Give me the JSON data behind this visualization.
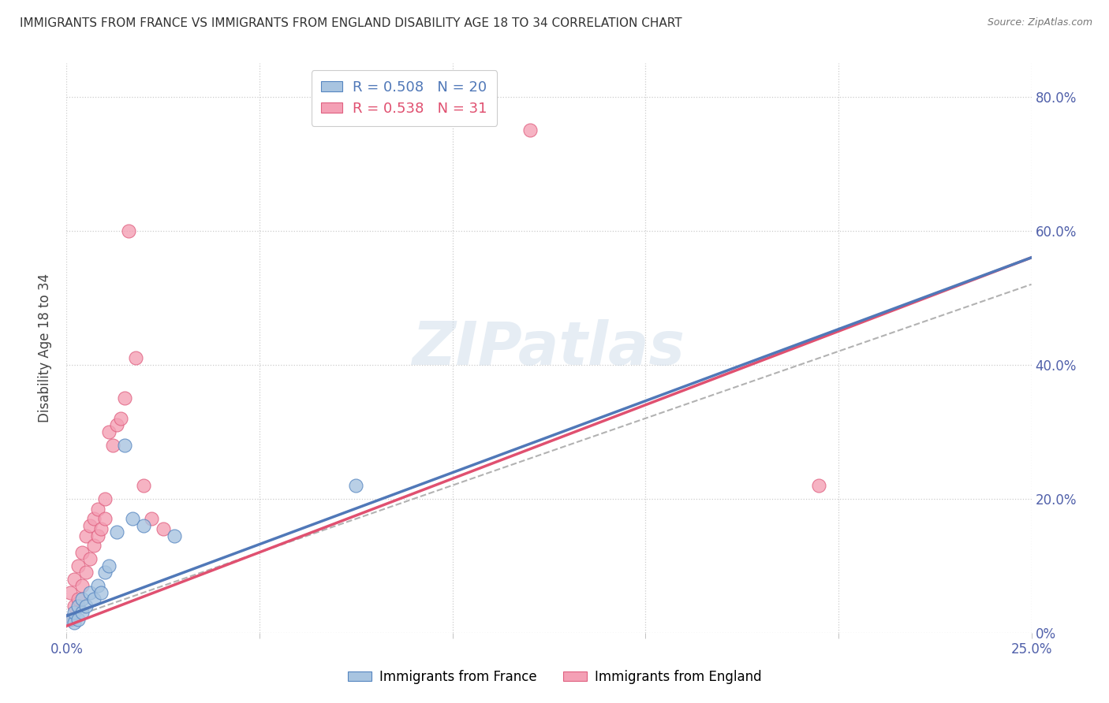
{
  "title": "IMMIGRANTS FROM FRANCE VS IMMIGRANTS FROM ENGLAND DISABILITY AGE 18 TO 34 CORRELATION CHART",
  "source": "Source: ZipAtlas.com",
  "ylabel": "Disability Age 18 to 34",
  "xlim": [
    0.0,
    0.25
  ],
  "ylim": [
    0.0,
    0.85
  ],
  "xticks": [
    0.0,
    0.05,
    0.1,
    0.15,
    0.2,
    0.25
  ],
  "yticks": [
    0.0,
    0.2,
    0.4,
    0.6,
    0.8
  ],
  "xtick_labels": [
    "0.0%",
    "",
    "",
    "",
    "",
    "25.0%"
  ],
  "ytick_labels_right": [
    "0%",
    "20.0%",
    "40.0%",
    "60.0%",
    "80.0%"
  ],
  "france_color": "#a8c4e0",
  "england_color": "#f4a0b5",
  "france_edge_color": "#5585c0",
  "england_edge_color": "#e06080",
  "france_line_color": "#5078b8",
  "england_line_color": "#e05070",
  "dash_color": "#aaaaaa",
  "legend_france_R": "0.508",
  "legend_france_N": "20",
  "legend_england_R": "0.538",
  "legend_england_N": "31",
  "watermark": "ZIPatlas",
  "france_x": [
    0.001,
    0.002,
    0.002,
    0.003,
    0.003,
    0.004,
    0.004,
    0.005,
    0.006,
    0.007,
    0.008,
    0.009,
    0.01,
    0.011,
    0.013,
    0.015,
    0.017,
    0.02,
    0.028,
    0.075
  ],
  "france_y": [
    0.02,
    0.015,
    0.03,
    0.02,
    0.04,
    0.03,
    0.05,
    0.04,
    0.06,
    0.05,
    0.07,
    0.06,
    0.09,
    0.1,
    0.15,
    0.28,
    0.17,
    0.16,
    0.145,
    0.22
  ],
  "england_x": [
    0.001,
    0.001,
    0.002,
    0.002,
    0.003,
    0.003,
    0.004,
    0.004,
    0.005,
    0.005,
    0.006,
    0.006,
    0.007,
    0.007,
    0.008,
    0.008,
    0.009,
    0.01,
    0.01,
    0.011,
    0.012,
    0.013,
    0.014,
    0.015,
    0.016,
    0.018,
    0.02,
    0.022,
    0.025,
    0.195,
    0.12
  ],
  "england_y": [
    0.02,
    0.06,
    0.04,
    0.08,
    0.05,
    0.1,
    0.07,
    0.12,
    0.09,
    0.145,
    0.11,
    0.16,
    0.13,
    0.17,
    0.145,
    0.185,
    0.155,
    0.17,
    0.2,
    0.3,
    0.28,
    0.31,
    0.32,
    0.35,
    0.6,
    0.41,
    0.22,
    0.17,
    0.155,
    0.22,
    0.75
  ],
  "france_line_x0": 0.0,
  "france_line_y0": 0.025,
  "france_line_x1": 0.25,
  "france_line_y1": 0.56,
  "england_line_x0": 0.0,
  "england_line_y0": 0.01,
  "england_line_x1": 0.25,
  "england_line_y1": 0.56,
  "dash_line_x0": 0.0,
  "dash_line_y0": 0.02,
  "dash_line_x1": 0.25,
  "dash_line_y1": 0.52
}
